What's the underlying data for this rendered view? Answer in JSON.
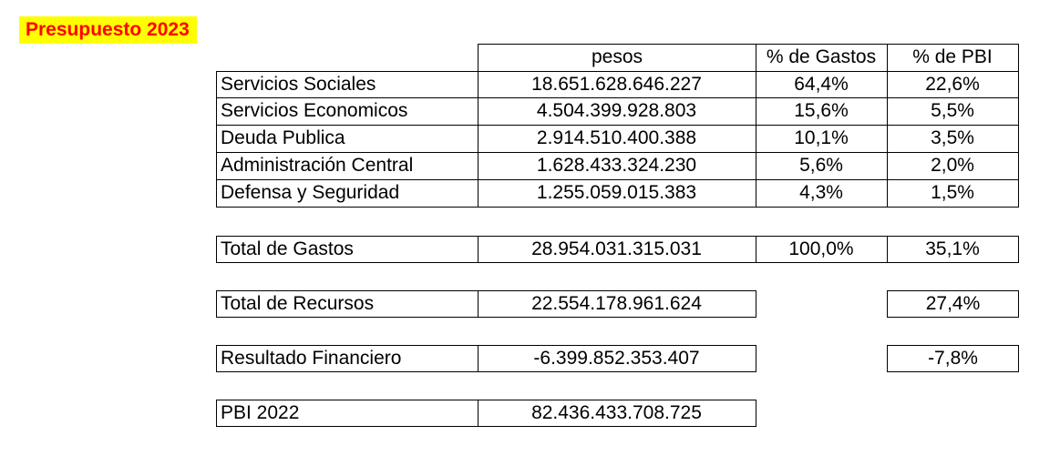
{
  "title": "Presupuesto 2023",
  "headers": {
    "pesos": "pesos",
    "pct_gastos": "% de Gastos",
    "pct_pbi": "% de PBI"
  },
  "rows": [
    {
      "label": "Servicios Sociales",
      "pesos": "18.651.628.646.227",
      "pct_gastos": "64,4%",
      "pct_pbi": "22,6%"
    },
    {
      "label": "Servicios Economicos",
      "pesos": "4.504.399.928.803",
      "pct_gastos": "15,6%",
      "pct_pbi": "5,5%"
    },
    {
      "label": "Deuda Publica",
      "pesos": "2.914.510.400.388",
      "pct_gastos": "10,1%",
      "pct_pbi": "3,5%"
    },
    {
      "label": "Administración Central",
      "pesos": "1.628.433.324.230",
      "pct_gastos": "5,6%",
      "pct_pbi": "2,0%"
    },
    {
      "label": "Defensa y Seguridad",
      "pesos": "1.255.059.015.383",
      "pct_gastos": "4,3%",
      "pct_pbi": "1,5%"
    }
  ],
  "total_gastos": {
    "label": "Total de Gastos",
    "pesos": "28.954.031.315.031",
    "pct_gastos": "100,0%",
    "pct_pbi": "35,1%"
  },
  "total_recursos": {
    "label": "Total de Recursos",
    "pesos": "22.554.178.961.624",
    "pct_pbi": "27,4%"
  },
  "resultado": {
    "label": "Resultado Financiero",
    "pesos": "-6.399.852.353.407",
    "pct_pbi": "-7,8%"
  },
  "pbi": {
    "label": "PBI 2022",
    "pesos": "82.436.433.708.725"
  }
}
